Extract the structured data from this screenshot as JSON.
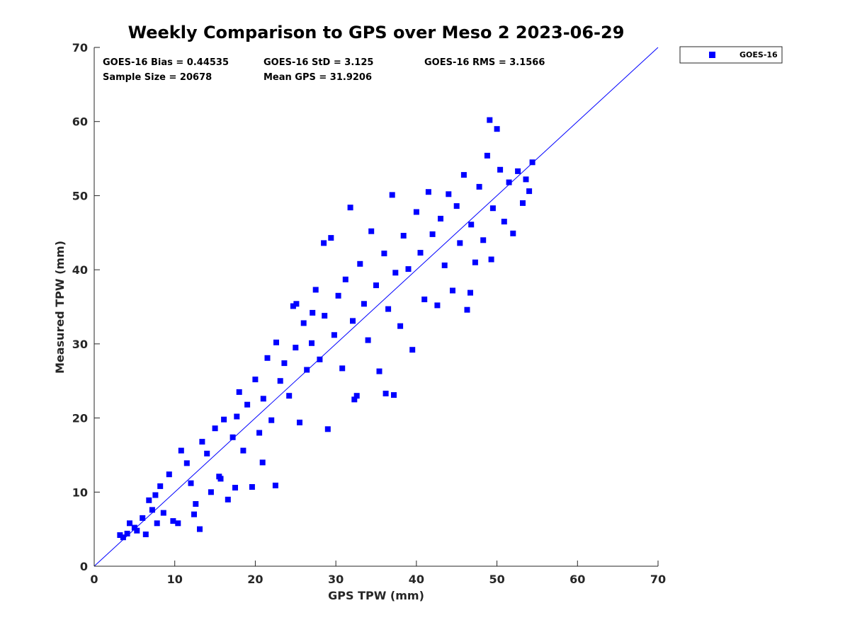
{
  "chart_data": {
    "type": "scatter",
    "title": "Weekly Comparison to GPS over Meso 2 2023-06-29",
    "xlabel": "GPS TPW (mm)",
    "ylabel": "Measured TPW (mm)",
    "xlim": [
      0,
      70
    ],
    "ylim": [
      0,
      70
    ],
    "xticks": [
      "0",
      "10",
      "20",
      "30",
      "40",
      "50",
      "60",
      "70"
    ],
    "yticks": [
      "0",
      "10",
      "20",
      "30",
      "40",
      "50",
      "60",
      "70"
    ],
    "grid": false,
    "legend_position": "top-right-outside",
    "series": [
      {
        "name": "GOES-16",
        "color": "#0000ff",
        "marker": "square",
        "note_sample_size": "20678",
        "points": [
          [
            3.2,
            4.2
          ],
          [
            3.6,
            3.9
          ],
          [
            4.1,
            4.4
          ],
          [
            4.4,
            5.8
          ],
          [
            5.0,
            5.2
          ],
          [
            5.3,
            4.8
          ],
          [
            6.0,
            6.5
          ],
          [
            6.4,
            4.3
          ],
          [
            6.8,
            8.9
          ],
          [
            7.2,
            7.6
          ],
          [
            7.6,
            9.6
          ],
          [
            8.2,
            10.8
          ],
          [
            8.6,
            7.2
          ],
          [
            9.3,
            12.4
          ],
          [
            9.8,
            6.1
          ],
          [
            10.4,
            5.8
          ],
          [
            10.8,
            15.6
          ],
          [
            11.5,
            13.9
          ],
          [
            12.0,
            11.2
          ],
          [
            12.6,
            8.4
          ],
          [
            13.1,
            5.0
          ],
          [
            13.4,
            16.8
          ],
          [
            14.0,
            15.2
          ],
          [
            14.5,
            10.0
          ],
          [
            15.0,
            18.6
          ],
          [
            15.5,
            12.1
          ],
          [
            16.1,
            19.8
          ],
          [
            16.6,
            9.0
          ],
          [
            17.2,
            17.4
          ],
          [
            17.7,
            20.2
          ],
          [
            18.0,
            23.5
          ],
          [
            18.5,
            15.6
          ],
          [
            19.0,
            21.8
          ],
          [
            19.6,
            10.7
          ],
          [
            20.0,
            25.2
          ],
          [
            20.5,
            18.0
          ],
          [
            21.0,
            22.6
          ],
          [
            21.5,
            28.1
          ],
          [
            22.0,
            19.7
          ],
          [
            22.6,
            30.2
          ],
          [
            22.5,
            10.9
          ],
          [
            23.1,
            25.0
          ],
          [
            23.6,
            27.4
          ],
          [
            24.2,
            23.0
          ],
          [
            24.7,
            35.1
          ],
          [
            25.0,
            29.5
          ],
          [
            25.5,
            19.4
          ],
          [
            26.0,
            32.8
          ],
          [
            26.4,
            26.5
          ],
          [
            27.0,
            30.1
          ],
          [
            27.5,
            37.3
          ],
          [
            28.0,
            27.9
          ],
          [
            28.6,
            33.8
          ],
          [
            29.0,
            18.5
          ],
          [
            29.4,
            44.3
          ],
          [
            29.8,
            31.2
          ],
          [
            30.3,
            36.5
          ],
          [
            30.8,
            26.7
          ],
          [
            31.2,
            38.7
          ],
          [
            31.8,
            48.4
          ],
          [
            32.1,
            33.1
          ],
          [
            32.6,
            23.0
          ],
          [
            33.0,
            40.8
          ],
          [
            33.5,
            35.4
          ],
          [
            34.0,
            30.5
          ],
          [
            34.4,
            45.2
          ],
          [
            35.0,
            37.9
          ],
          [
            35.4,
            26.3
          ],
          [
            36.0,
            42.2
          ],
          [
            36.5,
            34.7
          ],
          [
            37.0,
            50.1
          ],
          [
            37.4,
            39.6
          ],
          [
            38.0,
            32.4
          ],
          [
            38.4,
            44.6
          ],
          [
            39.0,
            40.1
          ],
          [
            39.5,
            29.2
          ],
          [
            40.0,
            47.8
          ],
          [
            40.5,
            42.3
          ],
          [
            41.0,
            36.0
          ],
          [
            41.5,
            50.5
          ],
          [
            42.0,
            44.8
          ],
          [
            42.6,
            35.2
          ],
          [
            43.0,
            46.9
          ],
          [
            43.5,
            40.6
          ],
          [
            44.0,
            50.2
          ],
          [
            44.5,
            37.2
          ],
          [
            45.0,
            48.6
          ],
          [
            45.4,
            43.6
          ],
          [
            45.9,
            52.8
          ],
          [
            46.3,
            34.6
          ],
          [
            46.8,
            46.1
          ],
          [
            47.3,
            41.0
          ],
          [
            47.8,
            51.2
          ],
          [
            48.3,
            44.0
          ],
          [
            48.8,
            55.4
          ],
          [
            49.1,
            60.2
          ],
          [
            49.5,
            48.3
          ],
          [
            50.0,
            59.0
          ],
          [
            50.4,
            53.5
          ],
          [
            50.9,
            46.5
          ],
          [
            51.5,
            51.8
          ],
          [
            52.0,
            44.9
          ],
          [
            52.6,
            53.3
          ],
          [
            53.2,
            49.0
          ],
          [
            53.6,
            52.2
          ],
          [
            54.0,
            50.6
          ],
          [
            54.4,
            54.5
          ],
          [
            49.3,
            41.4
          ],
          [
            46.7,
            36.9
          ],
          [
            37.2,
            23.1
          ],
          [
            36.2,
            23.3
          ],
          [
            32.3,
            22.5
          ],
          [
            28.5,
            43.6
          ],
          [
            27.1,
            34.2
          ],
          [
            25.1,
            35.4
          ],
          [
            20.9,
            14.0
          ],
          [
            17.5,
            10.6
          ],
          [
            15.7,
            11.8
          ],
          [
            12.4,
            7.0
          ],
          [
            7.8,
            5.8
          ]
        ]
      }
    ],
    "reference_line": [
      [
        0,
        0
      ],
      [
        70,
        70
      ]
    ],
    "legend": {
      "entries": [
        "GOES-16"
      ]
    },
    "stats": {
      "bias": "GOES-16 Bias = 0.44535",
      "std": "GOES-16 StD = 3.125",
      "rms": "GOES-16 RMS = 3.1566",
      "sample": "Sample Size = 20678",
      "mean": "Mean GPS = 31.9206"
    }
  }
}
